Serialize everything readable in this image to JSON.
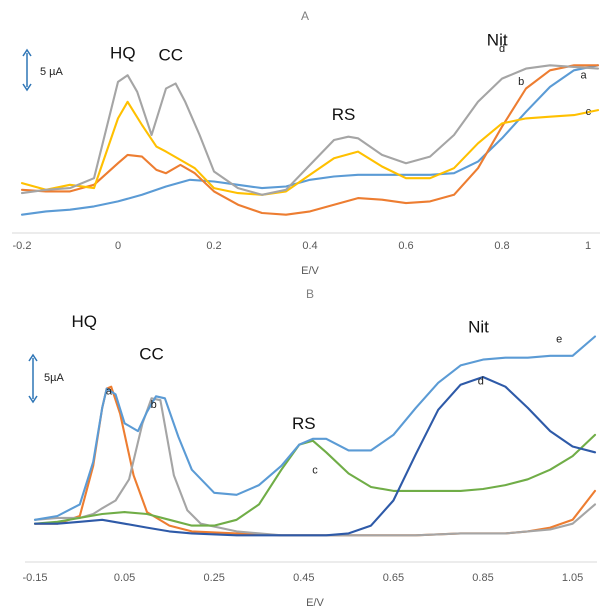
{
  "chart_data": [
    {
      "type": "line",
      "title": "A",
      "xlabel": "E/V",
      "ylabel": "",
      "xlim": [
        -0.2,
        1.0
      ],
      "ylim": [
        0,
        100
      ],
      "xticks": [
        "-0.2",
        "0",
        "0.2",
        "0.4",
        "0.6",
        "0.8",
        "1"
      ],
      "scale_bar": "5 µA",
      "peak_labels": [
        {
          "text": "HQ",
          "x": 0.01,
          "y": 96
        },
        {
          "text": "CC",
          "x": 0.11,
          "y": 95
        },
        {
          "text": "RS",
          "x": 0.47,
          "y": 59
        },
        {
          "text": "Nit",
          "x": 0.79,
          "y": 104
        }
      ],
      "series": [
        {
          "name": "a",
          "color": "#5b9bd5",
          "label_at": [
            0.97,
            84
          ],
          "x": [
            -0.2,
            -0.15,
            -0.1,
            -0.05,
            0.0,
            0.05,
            0.1,
            0.15,
            0.2,
            0.25,
            0.3,
            0.35,
            0.4,
            0.45,
            0.5,
            0.55,
            0.6,
            0.65,
            0.7,
            0.75,
            0.8,
            0.85,
            0.9,
            0.95,
            1.0
          ],
          "values": [
            2,
            4,
            5,
            7,
            10,
            14,
            19,
            23,
            22,
            20,
            18,
            19,
            23,
            25,
            26,
            26,
            26,
            26,
            27,
            34,
            48,
            64,
            79,
            89,
            92
          ]
        },
        {
          "name": "b",
          "color": "#ed7d31",
          "label_at": [
            0.84,
            80
          ],
          "x": [
            -0.2,
            -0.15,
            -0.1,
            -0.05,
            0.0,
            0.02,
            0.05,
            0.08,
            0.1,
            0.13,
            0.16,
            0.2,
            0.25,
            0.3,
            0.35,
            0.4,
            0.45,
            0.5,
            0.55,
            0.6,
            0.65,
            0.7,
            0.75,
            0.8,
            0.85,
            0.9,
            0.95,
            1.0
          ],
          "values": [
            17,
            16,
            16,
            20,
            33,
            38,
            37,
            29,
            27,
            32,
            27,
            16,
            8,
            3,
            2,
            4,
            8,
            12,
            11,
            9,
            10,
            14,
            30,
            55,
            78,
            89,
            92,
            92
          ]
        },
        {
          "name": "c",
          "color": "#ffc000",
          "label_at": [
            0.98,
            62
          ],
          "x": [
            -0.2,
            -0.15,
            -0.1,
            -0.05,
            0.0,
            0.02,
            0.05,
            0.08,
            0.1,
            0.13,
            0.16,
            0.2,
            0.25,
            0.3,
            0.35,
            0.4,
            0.45,
            0.5,
            0.55,
            0.6,
            0.65,
            0.7,
            0.75,
            0.8,
            0.85,
            0.9,
            0.95,
            1.0
          ],
          "values": [
            21,
            17,
            20,
            18,
            60,
            70,
            56,
            43,
            40,
            35,
            30,
            18,
            15,
            14,
            16,
            26,
            36,
            40,
            31,
            24,
            24,
            30,
            45,
            57,
            60,
            61,
            62,
            65
          ]
        },
        {
          "name": "d",
          "color": "#a5a5a5",
          "label_at": [
            0.8,
            100
          ],
          "x": [
            -0.2,
            -0.15,
            -0.1,
            -0.05,
            0.0,
            0.02,
            0.04,
            0.07,
            0.1,
            0.12,
            0.14,
            0.17,
            0.2,
            0.25,
            0.3,
            0.35,
            0.4,
            0.45,
            0.48,
            0.5,
            0.55,
            0.6,
            0.65,
            0.7,
            0.75,
            0.8,
            0.85,
            0.9,
            0.95,
            1.0
          ],
          "values": [
            15,
            17,
            18,
            24,
            82,
            86,
            76,
            50,
            78,
            81,
            70,
            50,
            28,
            18,
            14,
            17,
            32,
            47,
            49,
            48,
            38,
            33,
            37,
            50,
            70,
            84,
            90,
            92,
            91,
            90
          ]
        }
      ]
    },
    {
      "type": "line",
      "title": "B",
      "xlabel": "E/V",
      "ylabel": "",
      "xlim": [
        -0.15,
        1.1
      ],
      "ylim": [
        0,
        100
      ],
      "xticks": [
        "-0.15",
        "0.05",
        "0.25",
        "0.45",
        "0.65",
        "0.85",
        "1.05"
      ],
      "scale_bar": "5µA",
      "peak_labels": [
        {
          "text": "HQ",
          "x": -0.04,
          "y": 112
        },
        {
          "text": "CC",
          "x": 0.11,
          "y": 95
        },
        {
          "text": "RS",
          "x": 0.45,
          "y": 59
        },
        {
          "text": "Nit",
          "x": 0.84,
          "y": 109
        }
      ],
      "series": [
        {
          "name": "a",
          "color": "#ed7d31",
          "label_at": [
            0.015,
            77
          ],
          "x": [
            -0.15,
            -0.1,
            -0.05,
            -0.02,
            0.0,
            0.01,
            0.02,
            0.04,
            0.07,
            0.1,
            0.15,
            0.2,
            0.3,
            0.4,
            0.5,
            0.6,
            0.7,
            0.8,
            0.9,
            0.95,
            1.0,
            1.05,
            1.1
          ],
          "values": [
            10,
            10,
            14,
            40,
            70,
            80,
            81,
            67,
            35,
            16,
            9,
            6,
            5,
            4,
            4,
            4,
            4,
            5,
            5,
            6,
            8,
            12,
            27
          ]
        },
        {
          "name": "b",
          "color": "#a5a5a5",
          "label_at": [
            0.115,
            70
          ],
          "x": [
            -0.15,
            -0.1,
            -0.05,
            -0.02,
            0.0,
            0.03,
            0.06,
            0.09,
            0.11,
            0.13,
            0.16,
            0.19,
            0.22,
            0.3,
            0.4,
            0.5,
            0.6,
            0.7,
            0.8,
            0.9,
            0.95,
            1.0,
            1.05,
            1.1
          ],
          "values": [
            12,
            13,
            13,
            15,
            18,
            22,
            33,
            62,
            75,
            74,
            35,
            17,
            10,
            6,
            4,
            4,
            4,
            4,
            5,
            5,
            6,
            7,
            10,
            20
          ]
        },
        {
          "name": "c",
          "color": "#70ad47",
          "label_at": [
            0.475,
            36
          ],
          "x": [
            -0.15,
            -0.1,
            -0.05,
            0.0,
            0.05,
            0.1,
            0.15,
            0.2,
            0.25,
            0.3,
            0.35,
            0.4,
            0.44,
            0.47,
            0.5,
            0.55,
            0.6,
            0.65,
            0.7,
            0.75,
            0.8,
            0.85,
            0.9,
            0.95,
            1.0,
            1.05,
            1.1
          ],
          "values": [
            10,
            11,
            13,
            15,
            16,
            15,
            12,
            9,
            9,
            12,
            20,
            38,
            51,
            53,
            47,
            36,
            29,
            27,
            27,
            27,
            27,
            28,
            30,
            33,
            38,
            45,
            56
          ]
        },
        {
          "name": "d",
          "color": "#2e5aa8",
          "label_at": [
            0.845,
            82
          ],
          "x": [
            -0.15,
            -0.1,
            -0.05,
            0.0,
            0.05,
            0.1,
            0.15,
            0.2,
            0.3,
            0.4,
            0.5,
            0.55,
            0.6,
            0.65,
            0.7,
            0.75,
            0.8,
            0.85,
            0.9,
            0.95,
            1.0,
            1.05,
            1.1
          ],
          "values": [
            10,
            10,
            11,
            12,
            10,
            8,
            6,
            5,
            4,
            4,
            4,
            5,
            9,
            22,
            46,
            69,
            82,
            86,
            81,
            70,
            58,
            50,
            47
          ]
        },
        {
          "name": "e",
          "color": "#5b9bd5",
          "label_at": [
            1.02,
            104
          ],
          "x": [
            -0.15,
            -0.1,
            -0.05,
            -0.02,
            0.0,
            0.01,
            0.03,
            0.05,
            0.08,
            0.1,
            0.12,
            0.14,
            0.17,
            0.2,
            0.25,
            0.3,
            0.35,
            0.4,
            0.44,
            0.47,
            0.5,
            0.55,
            0.6,
            0.65,
            0.7,
            0.75,
            0.8,
            0.85,
            0.9,
            0.95,
            1.0,
            1.05,
            1.1
          ],
          "values": [
            12,
            14,
            20,
            42,
            70,
            80,
            77,
            62,
            58,
            68,
            76,
            75,
            55,
            38,
            26,
            25,
            30,
            40,
            51,
            54,
            54,
            48,
            48,
            56,
            70,
            83,
            92,
            95,
            96,
            96,
            97,
            97,
            107
          ]
        }
      ]
    }
  ]
}
